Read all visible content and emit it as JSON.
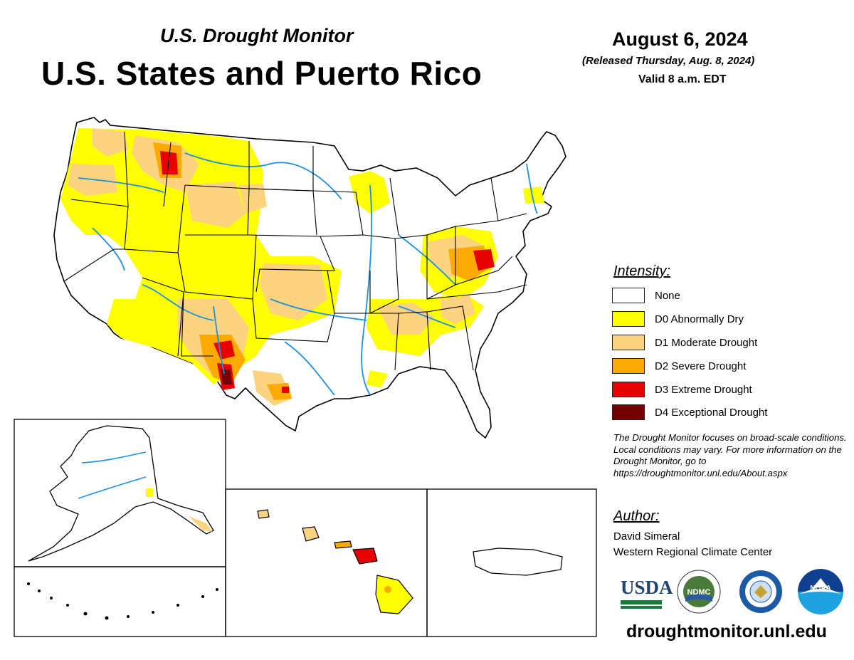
{
  "header": {
    "subtitle": "U.S. Drought Monitor",
    "title": "U.S. States and Puerto Rico"
  },
  "date": {
    "main": "August 6, 2024",
    "released": "(Released Thursday, Aug. 8, 2024)",
    "valid": "Valid 8 a.m. EDT"
  },
  "legend": {
    "title": "Intensity:",
    "items": [
      {
        "label": "None",
        "color": "#ffffff"
      },
      {
        "label": "D0 Abnormally Dry",
        "color": "#ffff00"
      },
      {
        "label": "D1 Moderate Drought",
        "color": "#fcd37f"
      },
      {
        "label": "D2 Severe Drought",
        "color": "#ffaa00"
      },
      {
        "label": "D3 Extreme Drought",
        "color": "#e60000"
      },
      {
        "label": "D4 Exceptional Drought",
        "color": "#730000"
      }
    ]
  },
  "note": "The Drought Monitor focuses on broad-scale conditions. Local conditions may vary. For more information on the Drought Monitor, go to https://droughtmonitor.unl.edu/About.aspx",
  "author": {
    "title": "Author:",
    "name": "David Simeral",
    "org": "Western Regional Climate Center"
  },
  "logos": {
    "usda": "USDA",
    "ndmc": "NDMC",
    "noaa": "NOAA"
  },
  "footer": {
    "url": "droughtmonitor.unl.edu"
  },
  "colors": {
    "water": "#1e90e0",
    "border": "#000000"
  }
}
